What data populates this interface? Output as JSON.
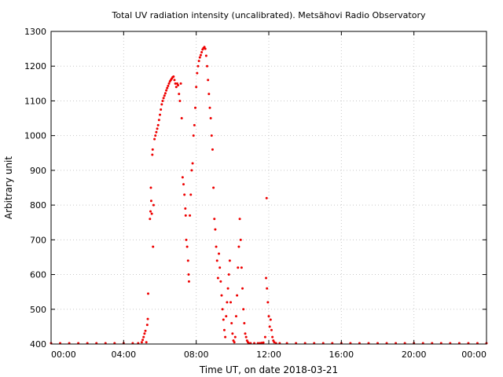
{
  "chart_data": {
    "type": "scatter",
    "title": "Total UV radiation intensity (uncalibrated). Metsähovi Radio Observatory",
    "xlabel": "Time UT, on date 2018-03-21",
    "ylabel": "Arbitrary unit",
    "x_unit": "hours UT",
    "xlim": [
      0,
      24
    ],
    "ylim": [
      400,
      1300
    ],
    "x_ticks": [
      {
        "value": 0,
        "label": "00:00"
      },
      {
        "value": 4,
        "label": "04:00"
      },
      {
        "value": 8,
        "label": "08:00"
      },
      {
        "value": 12,
        "label": "12:00"
      },
      {
        "value": 16,
        "label": "16:00"
      },
      {
        "value": 20,
        "label": "20:00"
      },
      {
        "value": 24,
        "label": "00:00"
      }
    ],
    "y_ticks": [
      400,
      500,
      600,
      700,
      800,
      900,
      1000,
      1100,
      1200,
      1300
    ],
    "grid": true,
    "marker_color": "#ee0000",
    "series": [
      {
        "points": [
          [
            0.0,
            400
          ],
          [
            0.5,
            400
          ],
          [
            1.0,
            400
          ],
          [
            1.5,
            400
          ],
          [
            2.0,
            400
          ],
          [
            2.5,
            400
          ],
          [
            3.0,
            400
          ],
          [
            3.5,
            400
          ],
          [
            4.0,
            400
          ],
          [
            4.5,
            400
          ],
          [
            4.8,
            401
          ],
          [
            5.0,
            405
          ],
          [
            5.05,
            412
          ],
          [
            5.1,
            420
          ],
          [
            5.15,
            430
          ],
          [
            5.2,
            438
          ],
          [
            5.25,
            405
          ],
          [
            5.3,
            455
          ],
          [
            5.33,
            472
          ],
          [
            5.35,
            545
          ],
          [
            5.45,
            760
          ],
          [
            5.48,
            782
          ],
          [
            5.5,
            850
          ],
          [
            5.52,
            812
          ],
          [
            5.55,
            775
          ],
          [
            5.58,
            945
          ],
          [
            5.6,
            960
          ],
          [
            5.62,
            680
          ],
          [
            5.65,
            800
          ],
          [
            5.7,
            990
          ],
          [
            5.75,
            1000
          ],
          [
            5.8,
            1010
          ],
          [
            5.85,
            1020
          ],
          [
            5.9,
            1030
          ],
          [
            5.95,
            1045
          ],
          [
            6.0,
            1060
          ],
          [
            6.05,
            1075
          ],
          [
            6.1,
            1090
          ],
          [
            6.15,
            1100
          ],
          [
            6.2,
            1108
          ],
          [
            6.25,
            1115
          ],
          [
            6.3,
            1122
          ],
          [
            6.35,
            1130
          ],
          [
            6.4,
            1137
          ],
          [
            6.45,
            1143
          ],
          [
            6.5,
            1150
          ],
          [
            6.55,
            1156
          ],
          [
            6.6,
            1160
          ],
          [
            6.65,
            1164
          ],
          [
            6.7,
            1168
          ],
          [
            6.75,
            1170
          ],
          [
            6.8,
            1160
          ],
          [
            6.85,
            1150
          ],
          [
            6.9,
            1140
          ],
          [
            6.95,
            1150
          ],
          [
            7.0,
            1145
          ],
          [
            7.05,
            1120
          ],
          [
            7.1,
            1100
          ],
          [
            7.15,
            1150
          ],
          [
            7.2,
            1050
          ],
          [
            7.25,
            880
          ],
          [
            7.3,
            860
          ],
          [
            7.35,
            830
          ],
          [
            7.4,
            790
          ],
          [
            7.42,
            770
          ],
          [
            7.45,
            700
          ],
          [
            7.5,
            680
          ],
          [
            7.55,
            640
          ],
          [
            7.58,
            600
          ],
          [
            7.6,
            580
          ],
          [
            7.65,
            770
          ],
          [
            7.7,
            830
          ],
          [
            7.75,
            900
          ],
          [
            7.8,
            920
          ],
          [
            7.85,
            1000
          ],
          [
            7.9,
            1030
          ],
          [
            7.95,
            1080
          ],
          [
            8.0,
            1140
          ],
          [
            8.05,
            1180
          ],
          [
            8.1,
            1200
          ],
          [
            8.15,
            1215
          ],
          [
            8.2,
            1225
          ],
          [
            8.25,
            1232
          ],
          [
            8.3,
            1240
          ],
          [
            8.35,
            1248
          ],
          [
            8.4,
            1252
          ],
          [
            8.45,
            1255
          ],
          [
            8.5,
            1250
          ],
          [
            8.55,
            1230
          ],
          [
            8.6,
            1200
          ],
          [
            8.65,
            1160
          ],
          [
            8.7,
            1120
          ],
          [
            8.75,
            1080
          ],
          [
            8.8,
            1050
          ],
          [
            8.85,
            1000
          ],
          [
            8.9,
            960
          ],
          [
            8.95,
            850
          ],
          [
            9.0,
            760
          ],
          [
            9.05,
            730
          ],
          [
            9.1,
            680
          ],
          [
            9.15,
            640
          ],
          [
            9.2,
            590
          ],
          [
            9.25,
            660
          ],
          [
            9.3,
            620
          ],
          [
            9.35,
            580
          ],
          [
            9.4,
            540
          ],
          [
            9.45,
            500
          ],
          [
            9.5,
            470
          ],
          [
            9.55,
            440
          ],
          [
            9.6,
            420
          ],
          [
            9.65,
            480
          ],
          [
            9.7,
            520
          ],
          [
            9.75,
            560
          ],
          [
            9.8,
            600
          ],
          [
            9.85,
            640
          ],
          [
            9.9,
            520
          ],
          [
            9.95,
            460
          ],
          [
            10.0,
            430
          ],
          [
            10.05,
            410
          ],
          [
            10.1,
            405
          ],
          [
            10.15,
            420
          ],
          [
            10.2,
            480
          ],
          [
            10.25,
            540
          ],
          [
            10.3,
            620
          ],
          [
            10.35,
            680
          ],
          [
            10.4,
            760
          ],
          [
            10.45,
            700
          ],
          [
            10.5,
            620
          ],
          [
            10.55,
            560
          ],
          [
            10.6,
            500
          ],
          [
            10.65,
            460
          ],
          [
            10.7,
            430
          ],
          [
            10.75,
            420
          ],
          [
            10.8,
            410
          ],
          [
            10.85,
            405
          ],
          [
            10.9,
            402
          ],
          [
            11.0,
            401
          ],
          [
            11.2,
            400
          ],
          [
            11.4,
            401
          ],
          [
            11.5,
            402
          ],
          [
            11.6,
            403
          ],
          [
            11.7,
            404
          ],
          [
            11.8,
            420
          ],
          [
            11.85,
            590
          ],
          [
            11.88,
            820
          ],
          [
            11.9,
            560
          ],
          [
            11.95,
            520
          ],
          [
            12.0,
            480
          ],
          [
            12.05,
            450
          ],
          [
            12.1,
            470
          ],
          [
            12.15,
            440
          ],
          [
            12.2,
            420
          ],
          [
            12.25,
            410
          ],
          [
            12.3,
            405
          ],
          [
            12.4,
            400
          ],
          [
            12.6,
            400
          ],
          [
            13.0,
            400
          ],
          [
            13.5,
            400
          ],
          [
            14.0,
            400
          ],
          [
            14.5,
            400
          ],
          [
            15.0,
            400
          ],
          [
            15.5,
            400
          ],
          [
            16.0,
            400
          ],
          [
            16.5,
            400
          ],
          [
            17.0,
            400
          ],
          [
            17.5,
            400
          ],
          [
            18.0,
            400
          ],
          [
            18.5,
            400
          ],
          [
            19.0,
            400
          ],
          [
            19.5,
            400
          ],
          [
            20.0,
            400
          ],
          [
            20.5,
            400
          ],
          [
            21.0,
            400
          ],
          [
            21.5,
            400
          ],
          [
            22.0,
            400
          ],
          [
            22.5,
            400
          ],
          [
            23.0,
            400
          ],
          [
            23.5,
            400
          ],
          [
            24.0,
            400
          ]
        ]
      }
    ]
  }
}
